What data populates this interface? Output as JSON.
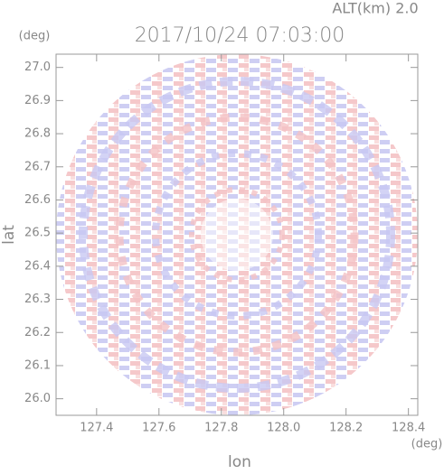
{
  "chart_data": {
    "type": "radar-field",
    "title": "2017/10/24 07:03:00",
    "subtitle": "ALT(km) 2.0",
    "x_label": "lon",
    "y_label": "lat",
    "x_unit": "(deg)",
    "y_unit": "(deg)",
    "xlim": [
      127.27,
      128.43
    ],
    "ylim": [
      25.95,
      27.04
    ],
    "xticks": [
      127.4,
      127.6,
      127.8,
      {
        "value": 128,
        "label": "128.0"
      },
      128.2,
      128.4
    ],
    "yticks": [
      {
        "value": 26,
        "label": "26.0"
      },
      26.1,
      26.2,
      26.3,
      26.4,
      26.5,
      26.6,
      26.7,
      26.8,
      26.9,
      {
        "value": 27,
        "label": "27.0"
      }
    ]
  }
}
